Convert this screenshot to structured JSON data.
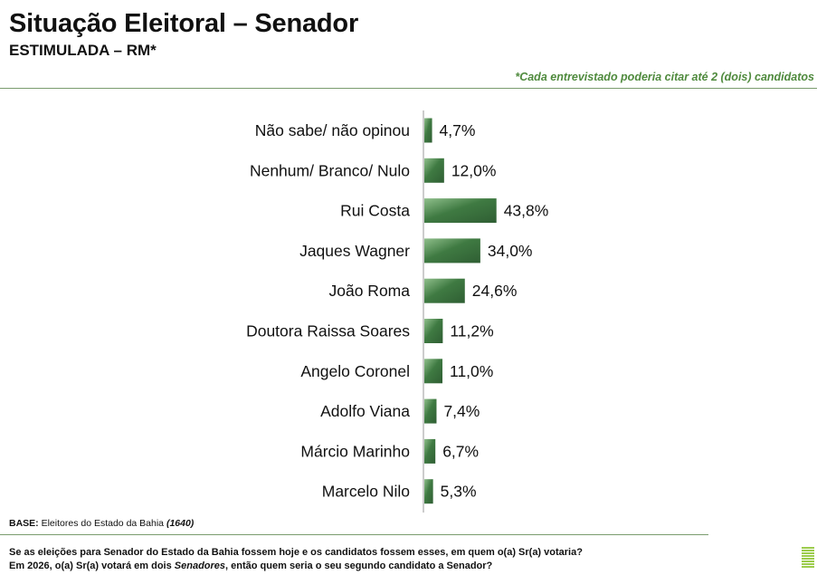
{
  "header": {
    "title": "Situação Eleitoral – Senador",
    "subtitle": "ESTIMULADA – RM*",
    "note": "*Cada entrevistado poderia citar até 2 (dois) candidatos"
  },
  "footer": {
    "base_label": "BASE:",
    "base_text": "Eleitores do Estado da Bahia",
    "base_n": "(1640)",
    "question_line1": "Se as eleições para Senador do Estado da Bahia fossem hoje e os candidatos fossem esses, em quem o(a) Sr(a) votaria?",
    "question_line2_pre": "Em 2026, o(a) Sr(a) votará em dois ",
    "question_line2_em": "Senadores",
    "question_line2_post": ", então quem seria o seu segundo candidato a Senador?"
  },
  "colors": {
    "bar": "#3f7a42",
    "bar_light": "#8fbf8b",
    "accent": "#4f8a3d"
  },
  "chart_data": {
    "type": "bar",
    "orientation": "horizontal",
    "categories": [
      "Não sabe/ não opinou",
      "Nenhum/ Branco/ Nulo",
      "Rui Costa",
      "Jaques Wagner",
      "João Roma",
      "Doutora Raissa Soares",
      "Angelo Coronel",
      "Adolfo Viana",
      "Márcio Marinho",
      "Marcelo Nilo"
    ],
    "values": [
      4.7,
      12.0,
      43.8,
      34.0,
      24.6,
      11.2,
      11.0,
      7.4,
      6.7,
      5.3
    ],
    "labels": [
      "4,7%",
      "12,0%",
      "43,8%",
      "34,0%",
      "24,6%",
      "11,2%",
      "11,0%",
      "7,4%",
      "6,7%",
      "5,3%"
    ],
    "unit": "%",
    "grid": false
  }
}
